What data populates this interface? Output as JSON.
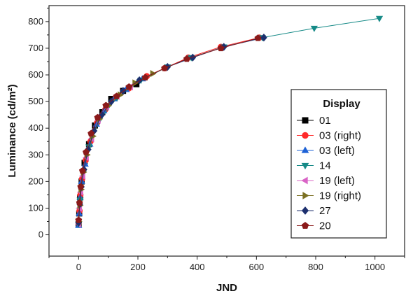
{
  "chart_data": {
    "type": "line",
    "xlabel": "JND",
    "ylabel": "Luminance (cd/m²)",
    "xlim": [
      -100,
      1100
    ],
    "ylim": [
      -80,
      860
    ],
    "xticks": [
      0,
      200,
      400,
      600,
      800,
      1000
    ],
    "yticks": [
      0,
      100,
      200,
      300,
      400,
      500,
      600,
      700,
      800
    ],
    "legend": {
      "title": "Display",
      "placement": "right"
    },
    "series": [
      {
        "name": "01",
        "color": "#000000",
        "marker": "square",
        "x": [
          0,
          2,
          5,
          10,
          20,
          35,
          55,
          80,
          110,
          150,
          195
        ],
        "y": [
          40,
          80,
          140,
          200,
          270,
          340,
          410,
          460,
          510,
          540,
          565
        ]
      },
      {
        "name": "03 (right)",
        "color": "#ff2a2a",
        "marker": "circle",
        "x": [
          0,
          3,
          6,
          12,
          24,
          40,
          62,
          90,
          125,
          170,
          230,
          290,
          370,
          480,
          610
        ],
        "y": [
          45,
          90,
          150,
          210,
          280,
          350,
          420,
          470,
          515,
          550,
          595,
          625,
          665,
          705,
          740
        ]
      },
      {
        "name": "03 (left)",
        "color": "#1e62d6",
        "marker": "triangle-up",
        "x": [
          0,
          2,
          5,
          10,
          22,
          38,
          60,
          85,
          120,
          160,
          215
        ],
        "y": [
          35,
          80,
          140,
          200,
          265,
          340,
          415,
          465,
          510,
          545,
          585
        ]
      },
      {
        "name": "14",
        "color": "#168a87",
        "marker": "triangle-down",
        "x": [
          0,
          5,
          15,
          35,
          70,
          130,
          210,
          300,
          380,
          490,
          620,
          795,
          1015
        ],
        "y": [
          40,
          130,
          230,
          330,
          430,
          515,
          580,
          630,
          665,
          705,
          740,
          775,
          812
        ]
      },
      {
        "name": "19 (left)",
        "color": "#d964c6",
        "marker": "triangle-left",
        "x": [
          0,
          3,
          7,
          14,
          26,
          44,
          66,
          95,
          130,
          175
        ],
        "y": [
          40,
          100,
          160,
          220,
          290,
          360,
          430,
          480,
          520,
          555
        ]
      },
      {
        "name": "19 (right)",
        "color": "#7b7022",
        "marker": "triangle-right",
        "x": [
          0,
          4,
          8,
          16,
          28,
          48,
          70,
          100,
          140,
          190,
          250
        ],
        "y": [
          50,
          110,
          170,
          235,
          300,
          370,
          435,
          485,
          525,
          570,
          605
        ]
      },
      {
        "name": "27",
        "color": "#1c2f6e",
        "marker": "diamond",
        "x": [
          0,
          4,
          9,
          18,
          32,
          52,
          78,
          110,
          150,
          205,
          300,
          385,
          490,
          625
        ],
        "y": [
          45,
          115,
          180,
          245,
          320,
          390,
          450,
          500,
          540,
          580,
          630,
          665,
          705,
          740
        ]
      },
      {
        "name": "20",
        "color": "#8b1a1a",
        "marker": "pentagon",
        "x": [
          0,
          3,
          7,
          13,
          25,
          42,
          64,
          92,
          128,
          170,
          225,
          290,
          365,
          480,
          605
        ],
        "y": [
          55,
          120,
          180,
          240,
          310,
          380,
          440,
          485,
          520,
          555,
          590,
          625,
          660,
          700,
          738
        ]
      }
    ]
  }
}
